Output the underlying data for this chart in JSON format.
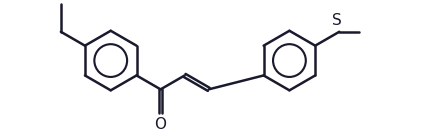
{
  "bg_color": "#ffffff",
  "line_color": "#1a1a2e",
  "line_width": 1.8,
  "font_size": 11,
  "atoms": {
    "O_label": "O",
    "S_label": "S",
    "Et_note": ""
  },
  "figsize": [
    4.22,
    1.36
  ],
  "dpi": 100
}
